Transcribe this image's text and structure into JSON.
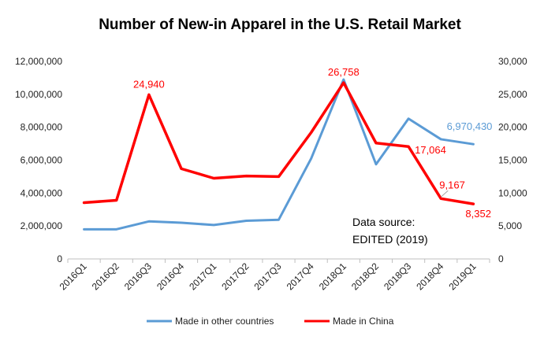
{
  "chart_data": {
    "type": "line",
    "title": "Number of New-in Apparel in the U.S. Retail Market",
    "categories": [
      "2016Q1",
      "2016Q2",
      "2016Q3",
      "2016Q4",
      "2017Q1",
      "2017Q2",
      "2017Q3",
      "2017Q4",
      "2018Q1",
      "2018Q2",
      "2018Q3",
      "2018Q4",
      "2019Q1"
    ],
    "left_axis": {
      "ylim": [
        0,
        12000000
      ],
      "ticks": [
        "0",
        "2,000,000",
        "4,000,000",
        "6,000,000",
        "8,000,000",
        "10,000,000",
        "12,000,000"
      ]
    },
    "right_axis": {
      "ylim": [
        0,
        30000
      ],
      "ticks": [
        "0",
        "5,000",
        "10,000",
        "15,000",
        "20,000",
        "25,000",
        "30,000"
      ]
    },
    "series": [
      {
        "name": "Made in other countries",
        "axis": "left",
        "color": "#5B9BD5",
        "values": [
          1800000,
          1800000,
          2280000,
          2200000,
          2060000,
          2320000,
          2380000,
          6100000,
          10900000,
          5750000,
          8520000,
          7270000,
          6970430
        ]
      },
      {
        "name": "Made in China",
        "axis": "right",
        "color": "#FF0000",
        "values": [
          8550,
          8900,
          24940,
          13700,
          12250,
          12600,
          12500,
          19200,
          26758,
          17600,
          17064,
          9167,
          8352
        ]
      }
    ],
    "data_labels": [
      {
        "series": 1,
        "index": 2,
        "text": "24,940",
        "color": "#FF0000"
      },
      {
        "series": 1,
        "index": 8,
        "text": "26,758",
        "color": "#FF0000"
      },
      {
        "series": 1,
        "index": 10,
        "text": "17,064",
        "color": "#FF0000"
      },
      {
        "series": 1,
        "index": 11,
        "text": "9,167",
        "color": "#FF0000"
      },
      {
        "series": 1,
        "index": 12,
        "text": "8,352",
        "color": "#FF0000"
      },
      {
        "series": 0,
        "index": 12,
        "text": "6,970,430",
        "color": "#5B9BD5"
      }
    ],
    "annotation": [
      "Data source:",
      "EDITED (2019)"
    ],
    "legend_position": "bottom"
  }
}
